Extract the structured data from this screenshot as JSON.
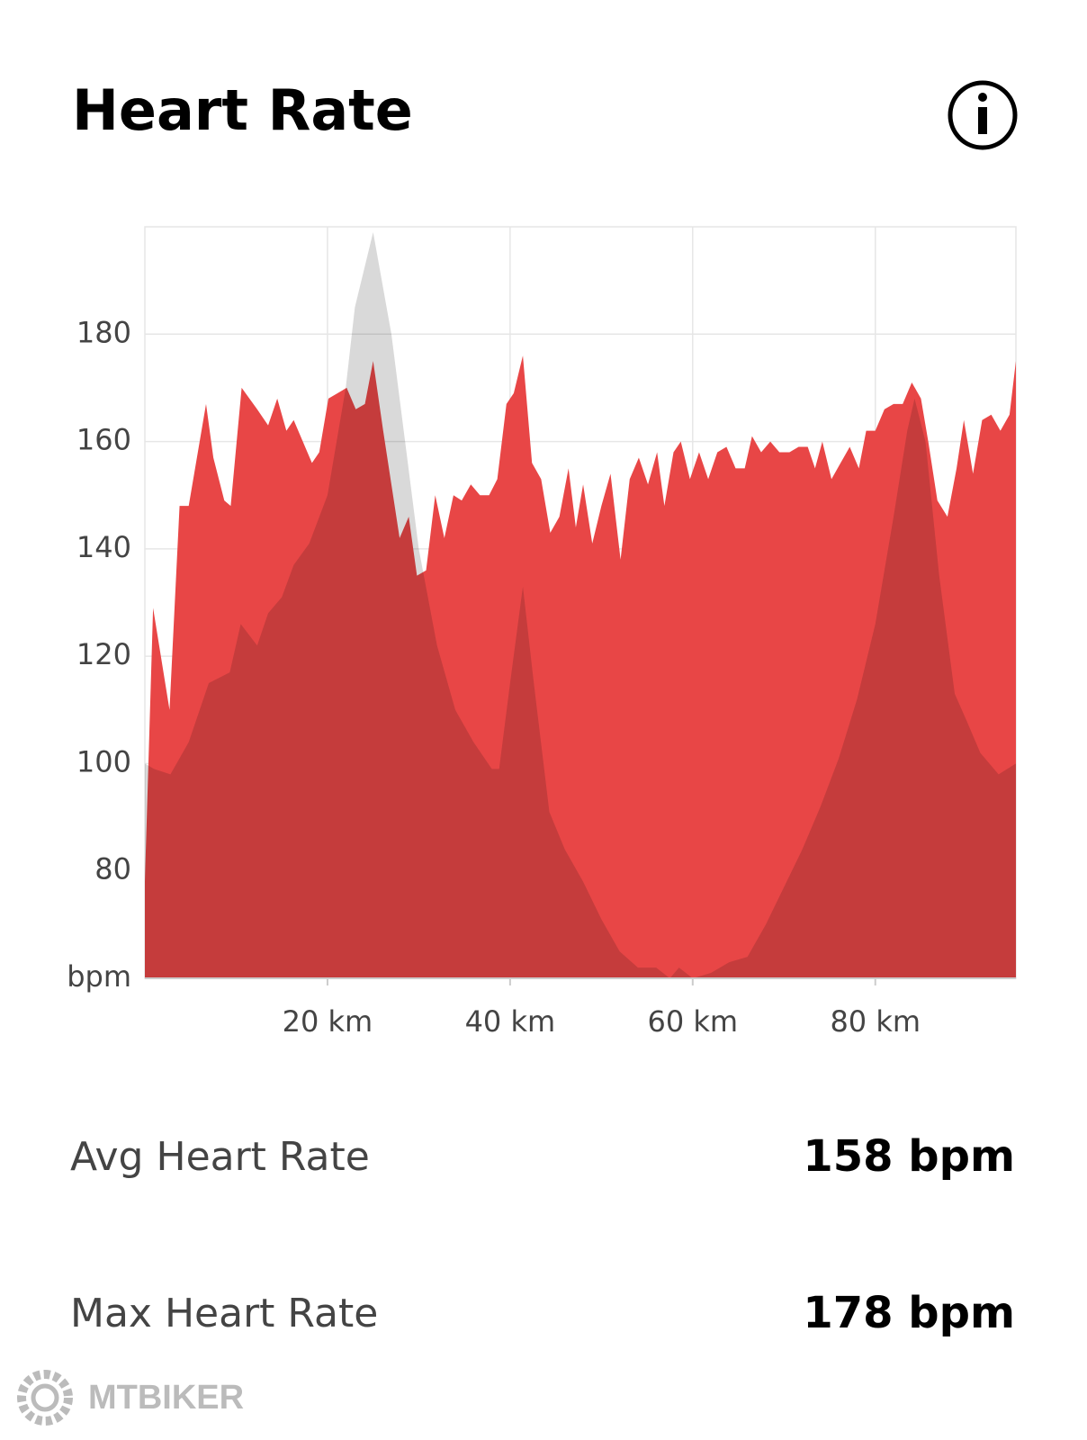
{
  "chart_data": {
    "type": "area",
    "title": "Heart Rate",
    "xlim": [
      0,
      95.4
    ],
    "ylim": [
      60,
      200
    ],
    "xticks": [
      {
        "value": 20,
        "label": "20 km"
      },
      {
        "value": 40,
        "label": "40 km"
      },
      {
        "value": 60,
        "label": "60 km"
      },
      {
        "value": 80,
        "label": "80 km"
      }
    ],
    "yticks": [
      {
        "value": 60,
        "label": "bpm"
      },
      80,
      100,
      120,
      140,
      160,
      180
    ],
    "grid": true,
    "series": [
      {
        "color": "#d9d9d9",
        "x": [
          0,
          1,
          2.8,
          4.8,
          7,
          9.3,
          10.5,
          12.3,
          13.5,
          15,
          16.3,
          18,
          20,
          22,
          23,
          25,
          27,
          28.5,
          30,
          32,
          34,
          36,
          38,
          38.8,
          40,
          41.4,
          42.6,
          44.3,
          46,
          48,
          50,
          52,
          54,
          56,
          57.5,
          58.5,
          60,
          62,
          64,
          66,
          68,
          70,
          72,
          74,
          76,
          78,
          80,
          82,
          83.5,
          84.3,
          85.5,
          87,
          88.7,
          90,
          91.5,
          93.5,
          95.4
        ],
        "values": [
          100,
          99,
          98,
          104,
          115,
          117,
          126,
          122,
          128,
          131,
          137,
          141,
          150,
          170,
          185,
          199,
          180,
          160,
          140,
          122,
          110,
          104,
          99,
          99,
          115,
          133,
          115,
          91,
          84,
          78,
          71,
          65,
          62,
          62,
          60,
          62,
          60,
          61,
          63,
          64,
          70,
          77,
          84,
          92,
          101,
          112,
          126,
          146,
          162,
          168,
          160,
          135,
          113,
          108,
          102,
          98,
          100
        ]
      },
      {
        "name": "Heart Rate",
        "color": "#e84646",
        "x": [
          0,
          0.9,
          2.7,
          3.8,
          4.8,
          6.7,
          7.5,
          8.7,
          9.4,
          10.6,
          12.3,
          13.5,
          14.5,
          15.5,
          16.3,
          18.3,
          19.1,
          20.1,
          22.1,
          23.1,
          24.1,
          25,
          26.1,
          27.9,
          28.9,
          29.8,
          30.8,
          31.8,
          32.8,
          33.8,
          34.7,
          35.7,
          36.7,
          37.7,
          38.6,
          39.6,
          40.4,
          41.4,
          42.4,
          43.4,
          44.4,
          45.4,
          46.4,
          47.2,
          48,
          49,
          50,
          51,
          52.1,
          53.1,
          54.1,
          55.1,
          56.1,
          56.9,
          57.9,
          58.7,
          59.7,
          60.7,
          61.7,
          62.7,
          63.7,
          64.7,
          65.7,
          66.5,
          67.5,
          68.5,
          69.5,
          70.6,
          71.6,
          72.6,
          73.4,
          74.2,
          75.2,
          76.2,
          77.2,
          78.2,
          79,
          80,
          81,
          82,
          83,
          84,
          85,
          85.8,
          86.8,
          87.9,
          88.9,
          89.7,
          90.7,
          91.7,
          92.7,
          93.7,
          94.7,
          95.4
        ],
        "values": [
          78,
          129,
          110,
          148,
          148,
          167,
          157,
          149,
          148,
          170,
          166,
          163,
          168,
          162,
          164,
          156,
          158,
          168,
          170,
          166,
          167,
          175,
          162,
          142,
          146,
          135,
          136,
          150,
          142,
          150,
          149,
          152,
          150,
          150,
          153,
          167,
          169,
          176,
          156,
          153,
          143,
          146,
          155,
          144,
          152,
          141,
          148,
          154,
          138,
          153,
          157,
          152,
          158,
          148,
          158,
          160,
          153,
          158,
          153,
          158,
          159,
          155,
          155,
          161,
          158,
          160,
          158,
          158,
          159,
          159,
          155,
          160,
          153,
          156,
          159,
          155,
          162,
          162,
          166,
          167,
          167,
          171,
          168,
          160,
          149,
          146,
          155,
          164,
          154,
          164,
          165,
          162,
          165,
          175
        ]
      }
    ]
  },
  "stats": [
    {
      "label": "Avg Heart Rate",
      "value": "158 bpm"
    },
    {
      "label": "Max Heart Rate",
      "value": "178 bpm"
    }
  ],
  "watermark": "MTBIKER"
}
